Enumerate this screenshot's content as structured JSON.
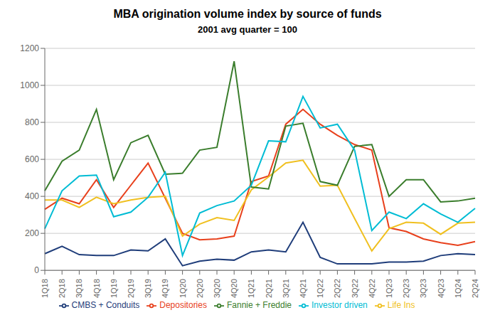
{
  "chart_data": {
    "type": "line",
    "title": "MBA origination volume index by source of funds",
    "subtitle": "2001 avg quarter = 100",
    "categories": [
      "1Q18",
      "2Q18",
      "3Q18",
      "4Q18",
      "1Q19",
      "2Q19",
      "3Q19",
      "4Q19",
      "1Q20",
      "2Q20",
      "3Q20",
      "4Q20",
      "1Q21",
      "2Q21",
      "3Q21",
      "4Q21",
      "1Q22",
      "2Q22",
      "3Q22",
      "4Q22",
      "1Q23",
      "2Q23",
      "3Q23",
      "4Q23",
      "1Q24",
      "2Q24"
    ],
    "series": [
      {
        "name": "CMBS + Conduits",
        "color": "#1f3d7a",
        "values": [
          90,
          130,
          85,
          80,
          80,
          110,
          105,
          170,
          25,
          50,
          60,
          55,
          100,
          110,
          100,
          260,
          70,
          35,
          35,
          35,
          45,
          45,
          50,
          80,
          90,
          85
        ]
      },
      {
        "name": "Depositories",
        "color": "#e8401c",
        "values": [
          330,
          390,
          360,
          490,
          340,
          460,
          580,
          390,
          200,
          165,
          170,
          185,
          480,
          510,
          790,
          870,
          790,
          730,
          680,
          650,
          230,
          210,
          170,
          150,
          135,
          155
        ]
      },
      {
        "name": "Life Ins",
        "color": "#f0c020",
        "values": [
          380,
          380,
          340,
          395,
          360,
          380,
          395,
          400,
          185,
          250,
          285,
          270,
          435,
          505,
          580,
          595,
          455,
          460,
          280,
          105,
          225,
          260,
          255,
          195,
          255,
          260
        ]
      },
      {
        "name": "Fannie + Freddie",
        "color": "#3a7d2c",
        "values": [
          430,
          590,
          650,
          870,
          490,
          690,
          730,
          520,
          525,
          650,
          665,
          1130,
          450,
          440,
          780,
          795,
          480,
          460,
          670,
          680,
          400,
          490,
          490,
          370,
          375,
          390
        ]
      },
      {
        "name": "Investor driven",
        "color": "#00bcd4",
        "values": [
          225,
          430,
          510,
          515,
          290,
          315,
          395,
          530,
          80,
          310,
          350,
          375,
          460,
          700,
          695,
          940,
          770,
          790,
          650,
          215,
          315,
          280,
          360,
          305,
          260,
          335
        ]
      }
    ],
    "ylim": [
      0,
      1200
    ],
    "yticks": [
      0,
      200,
      400,
      600,
      800,
      1000,
      1200
    ],
    "grid": true,
    "legend": "bottom"
  }
}
